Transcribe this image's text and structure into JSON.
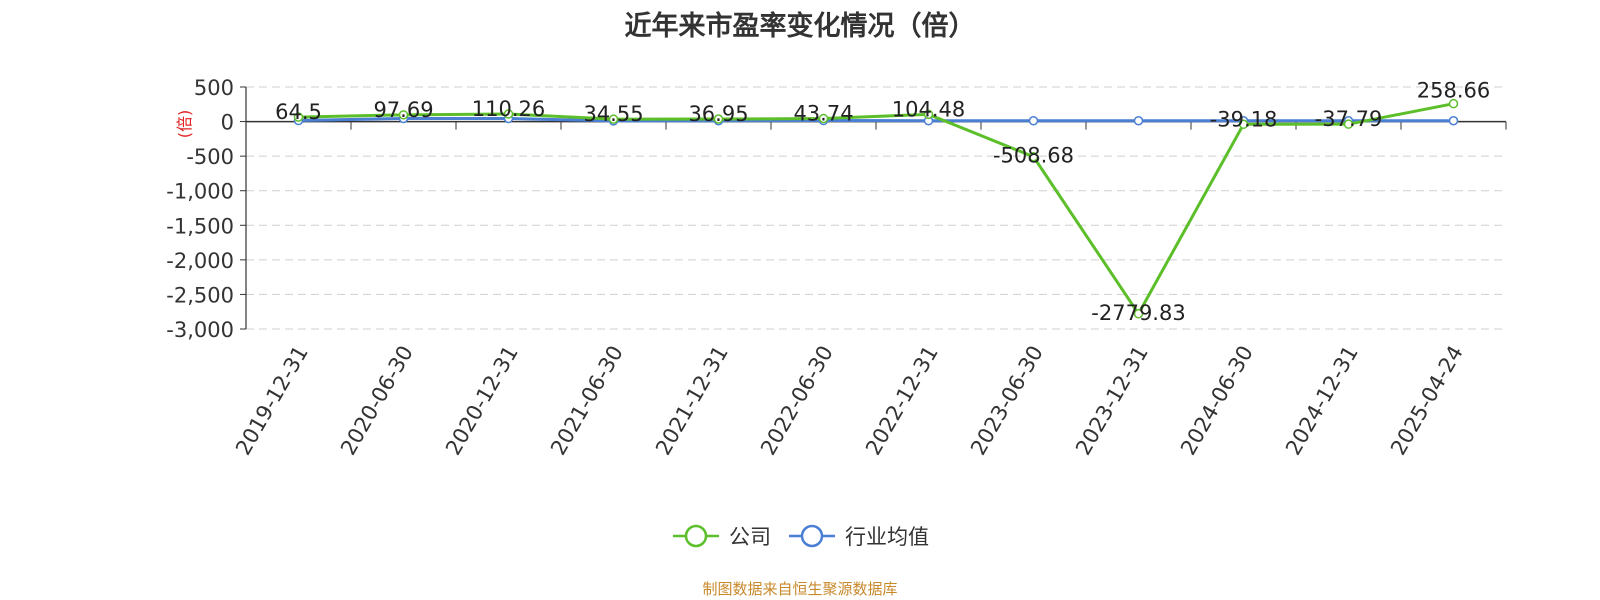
{
  "chart_data": {
    "type": "line",
    "title": "近年来市盈率变化情况（倍）",
    "ylabel": "(倍)",
    "categories": [
      "2019-12-31",
      "2020-06-30",
      "2020-12-31",
      "2021-06-30",
      "2021-12-31",
      "2022-06-30",
      "2022-12-31",
      "2023-06-30",
      "2023-12-31",
      "2024-06-30",
      "2024-12-31",
      "2025-04-24"
    ],
    "ylim": [
      -3000,
      500
    ],
    "yticks": [
      500,
      0,
      -500,
      -1000,
      -1500,
      -2000,
      -2500,
      -3000
    ],
    "ytick_labels": [
      "500",
      "0",
      "-500",
      "-1,000",
      "-1,500",
      "-2,000",
      "-2,500",
      "-3,000"
    ],
    "grid": true,
    "legend_position": "bottom",
    "series": [
      {
        "name": "公司",
        "color": "#5cbf2a",
        "values": [
          64.5,
          97.69,
          110.26,
          34.55,
          36.95,
          43.74,
          104.48,
          -508.68,
          -2779.83,
          -39.18,
          -37.79,
          258.66
        ],
        "labels": [
          "64.5",
          "97.69",
          "110.26",
          "34.55",
          "36.95",
          "43.74",
          "104.48",
          "-508.68",
          "-2779.83",
          "-39.18",
          "-37.79",
          "258.66"
        ]
      },
      {
        "name": "行业均值",
        "color": "#4a7fd4",
        "values": [
          15,
          45,
          45,
          10,
          12,
          15,
          12,
          12,
          12,
          12,
          12,
          12
        ],
        "labels": []
      }
    ]
  },
  "footer": {
    "source": "制图数据来自恒生聚源数据库"
  }
}
